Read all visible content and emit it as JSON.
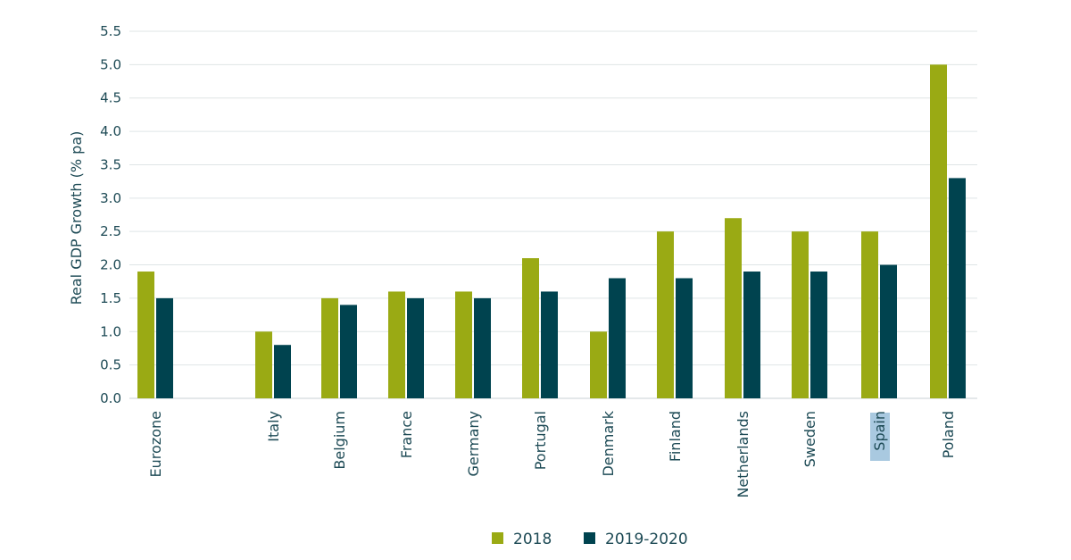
{
  "chart_data": {
    "type": "bar",
    "title": "",
    "xlabel": "",
    "ylabel": "Real GDP Growth (% pa)",
    "ylim": [
      0,
      5.5
    ],
    "yticks": [
      "0.0",
      "0.5",
      "1.0",
      "1.5",
      "2.0",
      "2.5",
      "3.0",
      "3.5",
      "4.0",
      "4.5",
      "5.0",
      "5.5"
    ],
    "grid": true,
    "legend_position": "bottom",
    "categories": [
      "Eurozone",
      "Italy",
      "Belgium",
      "France",
      "Germany",
      "Portugal",
      "Denmark",
      "Finland",
      "Netherlands",
      "Sweden",
      "Spain",
      "Poland"
    ],
    "highlighted_category": "Spain",
    "series": [
      {
        "name": "2018",
        "color": "#9aaa14",
        "values": [
          1.9,
          1.0,
          1.5,
          1.6,
          1.6,
          2.1,
          1.0,
          2.5,
          2.7,
          2.5,
          2.5,
          5.0
        ]
      },
      {
        "name": "2019-2020",
        "color": "#00434f",
        "values": [
          1.5,
          0.8,
          1.4,
          1.5,
          1.5,
          1.6,
          1.8,
          1.8,
          1.9,
          1.9,
          2.0,
          3.3
        ]
      }
    ]
  }
}
